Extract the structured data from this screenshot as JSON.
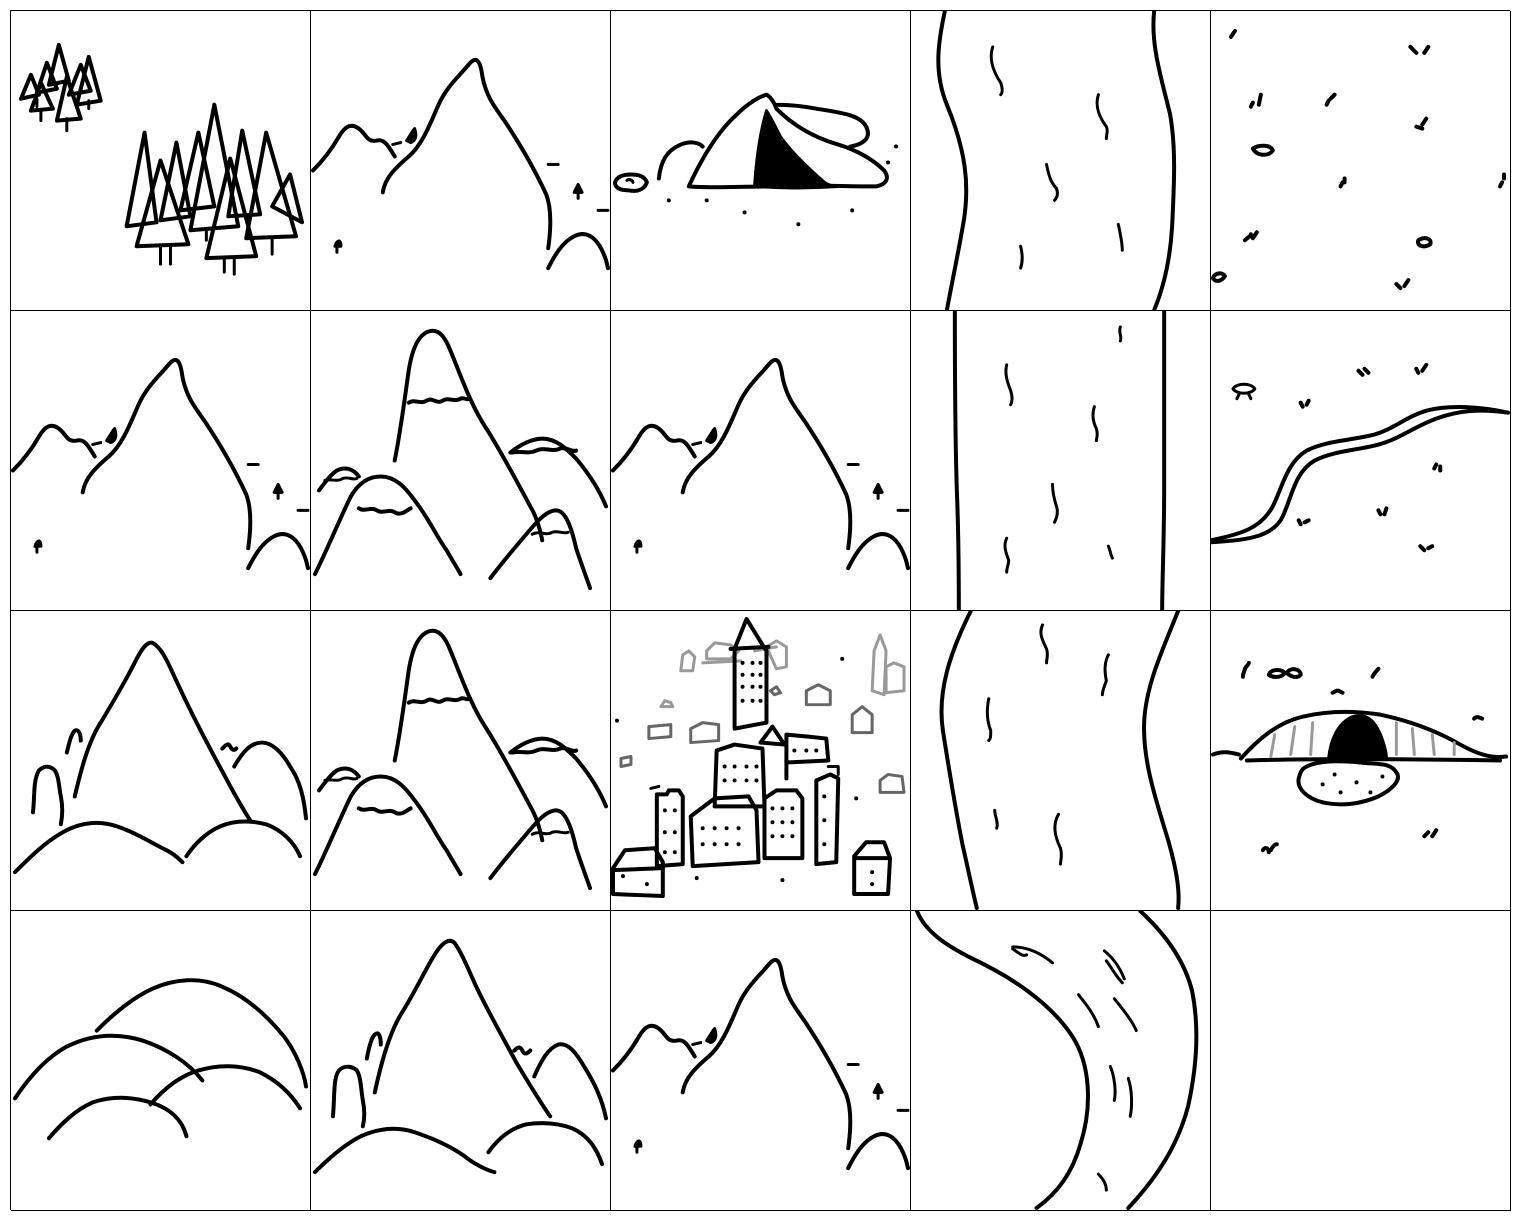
{
  "grid": {
    "rows": 4,
    "columns": 5,
    "tiles": [
      {
        "id": "r1c1",
        "icon": "forest-icon"
      },
      {
        "id": "r1c2",
        "icon": "mountain-icon"
      },
      {
        "id": "r1c3",
        "icon": "cave-icon"
      },
      {
        "id": "r1c4",
        "icon": "river-icon"
      },
      {
        "id": "r1c5",
        "icon": "plains-icon"
      },
      {
        "id": "r2c1",
        "icon": "mountain-icon"
      },
      {
        "id": "r2c2",
        "icon": "snowy-mountains-icon"
      },
      {
        "id": "r2c3",
        "icon": "mountain-icon"
      },
      {
        "id": "r2c4",
        "icon": "river-icon"
      },
      {
        "id": "r2c5",
        "icon": "path-icon"
      },
      {
        "id": "r3c1",
        "icon": "mountain-range-icon"
      },
      {
        "id": "r3c2",
        "icon": "snowy-mountains-icon"
      },
      {
        "id": "r3c3",
        "icon": "city-icon"
      },
      {
        "id": "r3c4",
        "icon": "river-icon"
      },
      {
        "id": "r3c5",
        "icon": "cave-icon"
      },
      {
        "id": "r4c1",
        "icon": "hills-icon"
      },
      {
        "id": "r4c2",
        "icon": "mountain-range-icon"
      },
      {
        "id": "r4c3",
        "icon": "mountain-icon"
      },
      {
        "id": "r4c4",
        "icon": "river-bend-icon"
      },
      {
        "id": "r4c5",
        "icon": "empty-tile-icon"
      }
    ]
  }
}
